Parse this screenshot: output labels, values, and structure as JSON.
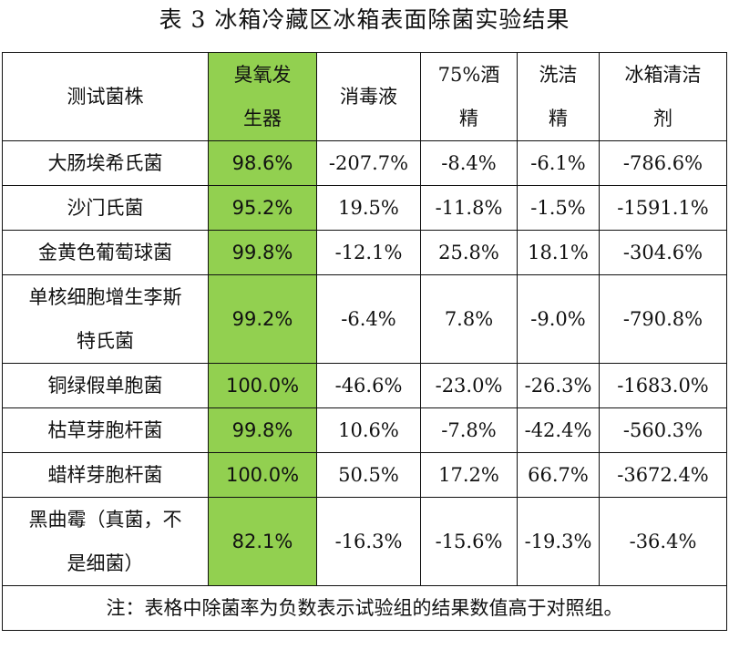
{
  "title": "表 3  冰箱冷藏区冰箱表面除菌实验结果",
  "columns": [
    {
      "line1": "测试菌株",
      "line2": ""
    },
    {
      "line1": "臭氧发",
      "line2": "生器"
    },
    {
      "line1": "消毒液",
      "line2": ""
    },
    {
      "line1": "75%酒",
      "line2": "精"
    },
    {
      "line1": "洗洁",
      "line2": "精"
    },
    {
      "line1": "冰箱清洁",
      "line2": "剂"
    }
  ],
  "rows": [
    {
      "strain_line1": "大肠埃希氏菌",
      "strain_line2": "",
      "ozone": "98.6%",
      "disinfectant": "-207.7%",
      "alcohol": "-8.4%",
      "detergent": "-6.1%",
      "fridge_cleaner": "-786.6%"
    },
    {
      "strain_line1": "沙门氏菌",
      "strain_line2": "",
      "ozone": "95.2%",
      "disinfectant": "19.5%",
      "alcohol": "-11.8%",
      "detergent": "-1.5%",
      "fridge_cleaner": "-1591.1%"
    },
    {
      "strain_line1": "金黄色葡萄球菌",
      "strain_line2": "",
      "ozone": "99.8%",
      "disinfectant": "-12.1%",
      "alcohol": "25.8%",
      "detergent": "18.1%",
      "fridge_cleaner": "-304.6%"
    },
    {
      "strain_line1": "单核细胞增生李斯",
      "strain_line2": "特氏菌",
      "ozone": "99.2%",
      "disinfectant": "-6.4%",
      "alcohol": "7.8%",
      "detergent": "-9.0%",
      "fridge_cleaner": "-790.8%"
    },
    {
      "strain_line1": "铜绿假单胞菌",
      "strain_line2": "",
      "ozone": "100.0%",
      "disinfectant": "-46.6%",
      "alcohol": "-23.0%",
      "detergent": "-26.3%",
      "fridge_cleaner": "-1683.0%"
    },
    {
      "strain_line1": "枯草芽胞杆菌",
      "strain_line2": "",
      "ozone": "99.8%",
      "disinfectant": "10.6%",
      "alcohol": "-7.8%",
      "detergent": "-42.4%",
      "fridge_cleaner": "-560.3%"
    },
    {
      "strain_line1": "蜡样芽胞杆菌",
      "strain_line2": "",
      "ozone": "100.0%",
      "disinfectant": "50.5%",
      "alcohol": "17.2%",
      "detergent": "66.7%",
      "fridge_cleaner": "-3672.4%"
    },
    {
      "strain_line1": "黑曲霉（真菌，不",
      "strain_line2": "是细菌）",
      "ozone": "82.1%",
      "disinfectant": "-16.3%",
      "alcohol": "-15.6%",
      "detergent": "-19.3%",
      "fridge_cleaner": "-36.4%"
    }
  ],
  "note": "注：表格中除菌率为负数表示试验组的结果数值高于对照组。",
  "colors": {
    "ozone_highlight": "#92d050"
  }
}
